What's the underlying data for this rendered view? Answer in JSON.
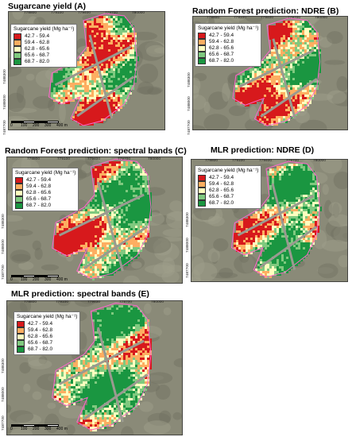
{
  "panels": [
    {
      "id": "A",
      "title": "Sugarcane yield (A)",
      "x_ticks": [
        "778800",
        "779100",
        "779400",
        "779700",
        "780000"
      ],
      "y_ticks": [
        "7488300",
        "7488000",
        "7487700"
      ],
      "scale": [
        "0",
        "100",
        "200",
        "300",
        "400 m"
      ]
    },
    {
      "id": "B",
      "title": "Random Forest prediction: NDRE (B)",
      "x_ticks": [
        "778800",
        "779100",
        "779400",
        "779700",
        "780000"
      ],
      "y_ticks": [
        "7488300",
        "7488000",
        "7487700"
      ],
      "scale": [
        "0",
        "100",
        "200",
        "300",
        "400 m"
      ]
    },
    {
      "id": "C",
      "title": "Random Forest prediction: spectral bands (C)",
      "x_ticks": [
        "778800",
        "779100",
        "779400",
        "779700",
        "780000"
      ],
      "y_ticks": [
        "7488300",
        "7488000",
        "7487700"
      ],
      "scale": [
        "0",
        "100",
        "200",
        "300",
        "400 m"
      ]
    },
    {
      "id": "D",
      "title": "MLR prediction: NDRE (D)",
      "x_ticks": [
        "778800",
        "779100",
        "779400",
        "779700",
        "780000"
      ],
      "y_ticks": [
        "7488300",
        "7488000",
        "7487700"
      ],
      "scale": [
        "0",
        "100",
        "200",
        "300",
        "400 m"
      ]
    },
    {
      "id": "E",
      "title": "MLR prediction: spectral bands (E)",
      "x_ticks": [
        "778800",
        "779100",
        "779400",
        "779700",
        "780000"
      ],
      "y_ticks": [
        "7488300",
        "7488000",
        "7487700"
      ],
      "scale": [
        "0",
        "100",
        "200",
        "300",
        "400 m"
      ]
    }
  ],
  "legend": {
    "title": "Sugarcane yield (Mg ha⁻¹)",
    "classes": [
      {
        "label": "42.7 - 59.4",
        "color": "#d7191c"
      },
      {
        "label": "59.4 - 62.8",
        "color": "#fdae61"
      },
      {
        "label": "62.8 - 65.6",
        "color": "#ffffbf"
      },
      {
        "label": "65.6 - 68.7",
        "color": "#7fc97f"
      },
      {
        "label": "68.7 - 82.0",
        "color": "#1a9641"
      }
    ]
  },
  "colors": {
    "background_terrain": "#8a8a78",
    "field_border": "#ff66cc"
  }
}
